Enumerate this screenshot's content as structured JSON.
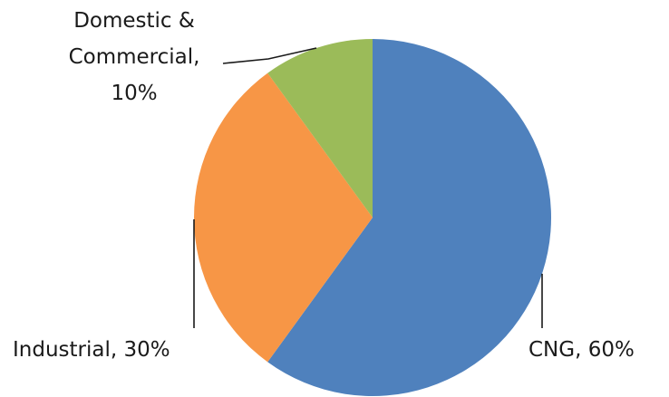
{
  "chart_data": {
    "type": "pie",
    "title": "",
    "slices": [
      {
        "name": "CNG",
        "value": 60,
        "label": "CNG, 60%",
        "color": "#4F81BD"
      },
      {
        "name": "Industrial",
        "value": 30,
        "label": "Industrial, 30%",
        "color": "#F79646"
      },
      {
        "name": "Domestic & Commercial",
        "value": 10,
        "label_lines": [
          "Domestic &",
          "Commercial,",
          "10%"
        ],
        "color": "#9BBB59"
      }
    ],
    "start_angle_deg": 0,
    "direction": "clockwise",
    "legend": "none",
    "data_labels": "outside-with-leader-lines"
  }
}
